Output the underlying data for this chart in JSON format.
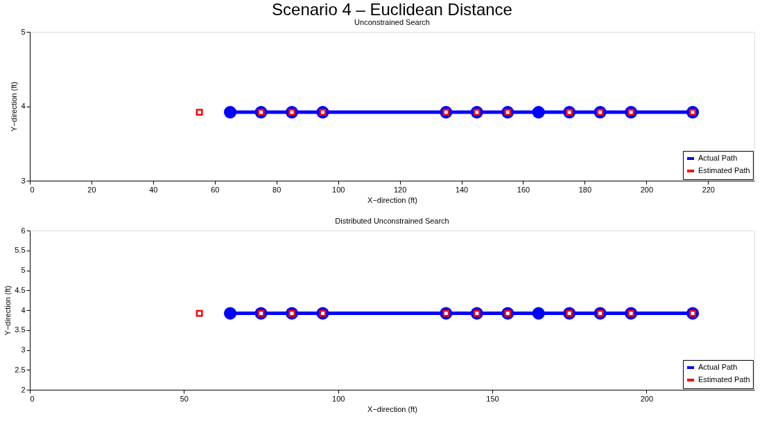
{
  "chart_data": [
    {
      "type": "line",
      "title": "Scenario 4 – Euclidean Distance",
      "subtitle": "Unconstrained Search",
      "xlabel": "X−direction (ft)",
      "ylabel": "Y−direction (ft)",
      "xlim": [
        0,
        235
      ],
      "xticks": [
        0,
        20,
        40,
        60,
        80,
        100,
        120,
        140,
        160,
        180,
        200,
        220
      ],
      "ylim": [
        3,
        5
      ],
      "yticks": [
        3,
        4,
        5
      ],
      "grid": false,
      "legend": "bottom right",
      "series": [
        {
          "name": "Actual Path",
          "color": "#0000ff",
          "marker": "circle",
          "x": [
            65,
            75,
            85,
            95,
            135,
            145,
            155,
            165,
            175,
            185,
            195,
            215
          ],
          "values": [
            3.92,
            3.92,
            3.92,
            3.92,
            3.92,
            3.92,
            3.92,
            3.92,
            3.92,
            3.92,
            3.92,
            3.92
          ]
        },
        {
          "name": "Estimated Path",
          "type": "scatter",
          "color": "#ff0000",
          "marker": "square",
          "x": [
            55,
            75,
            85,
            95,
            135,
            145,
            155,
            175,
            185,
            195,
            215
          ],
          "values": [
            3.92,
            3.92,
            3.92,
            3.92,
            3.92,
            3.92,
            3.92,
            3.92,
            3.92,
            3.92,
            3.92
          ]
        }
      ]
    },
    {
      "type": "line",
      "title": "Distributed Unconstrained Search",
      "xlabel": "X−direction (ft)",
      "ylabel": "Y−direction (ft)",
      "xlim": [
        0,
        235
      ],
      "xticks": [
        0,
        50,
        100,
        150,
        200
      ],
      "ylim": [
        2,
        6
      ],
      "yticks": [
        2,
        2.5,
        3,
        3.5,
        4,
        4.5,
        5,
        5.5,
        6
      ],
      "grid": false,
      "legend": "bottom right",
      "series": [
        {
          "name": "Actual Path",
          "color": "#0000ff",
          "marker": "circle",
          "x": [
            65,
            75,
            85,
            95,
            135,
            145,
            155,
            165,
            175,
            185,
            195,
            215
          ],
          "values": [
            3.92,
            3.92,
            3.92,
            3.92,
            3.92,
            3.92,
            3.92,
            3.92,
            3.92,
            3.92,
            3.92,
            3.92
          ]
        },
        {
          "name": "Estimated Path",
          "type": "scatter",
          "color": "#ff0000",
          "marker": "square",
          "x": [
            55,
            75,
            85,
            95,
            135,
            145,
            155,
            175,
            185,
            195,
            215
          ],
          "values": [
            3.92,
            3.92,
            3.92,
            3.92,
            3.92,
            3.92,
            3.92,
            3.92,
            3.92,
            3.92,
            3.92
          ]
        }
      ]
    }
  ]
}
